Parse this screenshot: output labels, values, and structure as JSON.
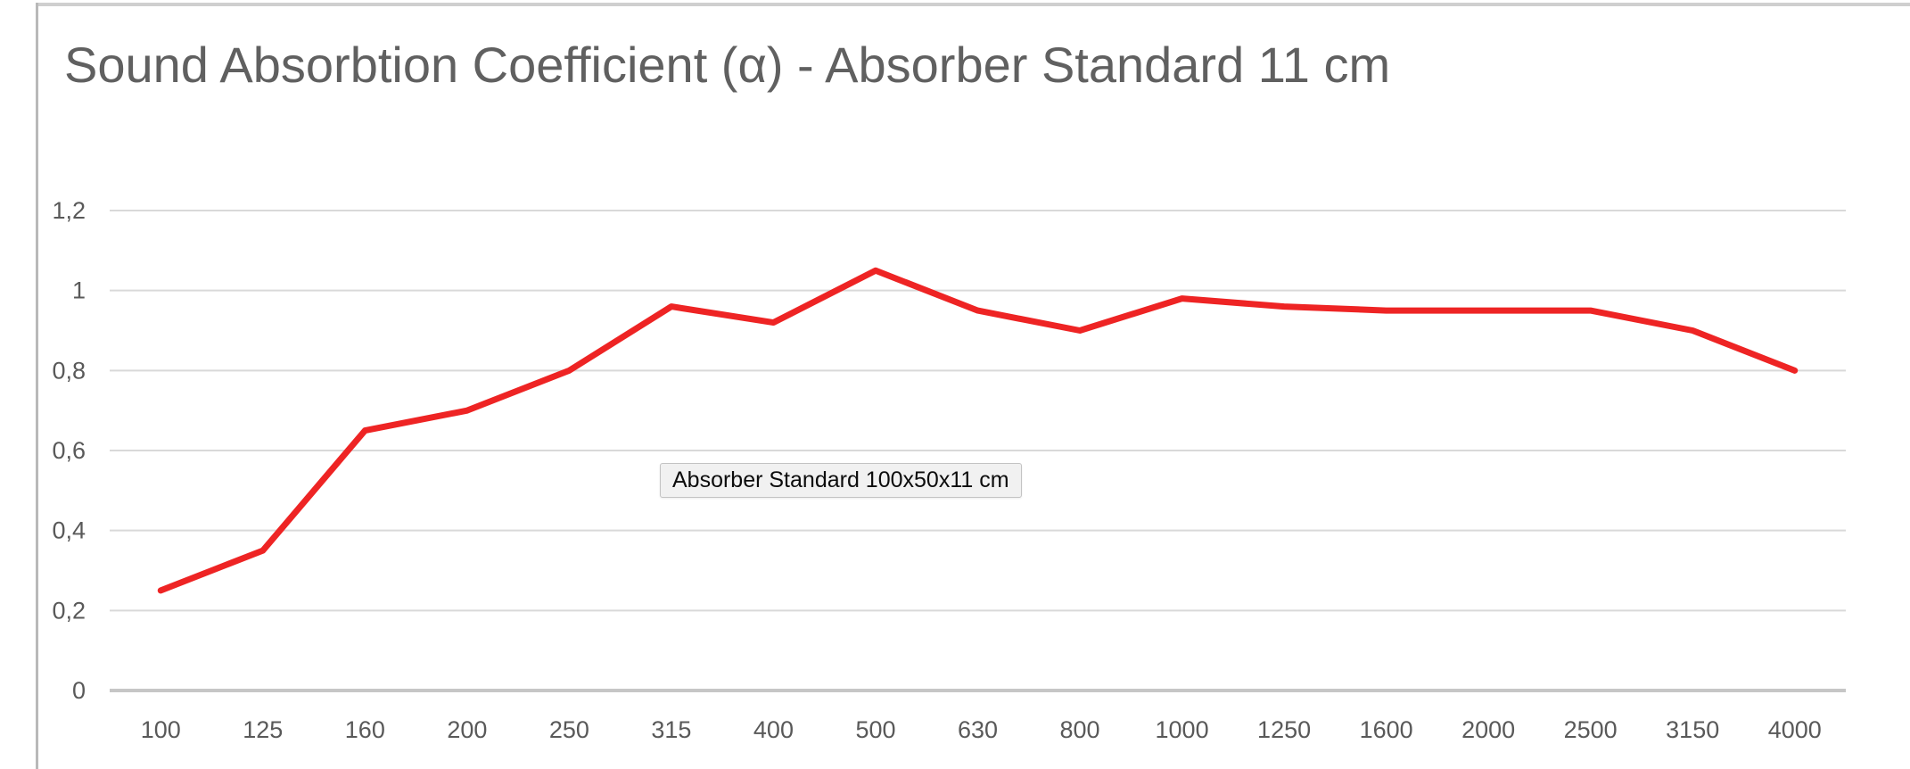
{
  "chart_data": {
    "type": "line",
    "title": "Sound Absorbtion Coefficient (α) - Absorber Standard 11 cm",
    "xlabel": "",
    "ylabel": "",
    "categories": [
      "100",
      "125",
      "160",
      "200",
      "250",
      "315",
      "400",
      "500",
      "630",
      "800",
      "1000",
      "1250",
      "1600",
      "2000",
      "2500",
      "3150",
      "4000"
    ],
    "series": [
      {
        "name": "Absorber Standard 100x50x11 cm",
        "color": "#ee2424",
        "values": [
          0.25,
          0.35,
          0.65,
          0.7,
          0.8,
          0.96,
          0.92,
          1.05,
          0.95,
          0.9,
          0.98,
          0.96,
          0.95,
          0.95,
          0.95,
          0.9,
          0.8
        ]
      }
    ],
    "ylim": [
      0,
      1.2
    ],
    "yticks": {
      "values": [
        0,
        0.2,
        0.4,
        0.6,
        0.8,
        1,
        1.2
      ],
      "labels": [
        "0",
        "0,2",
        "0,4",
        "0,6",
        "0,8",
        "1",
        "1,2"
      ]
    },
    "decimal_separator": ",",
    "grid": true,
    "legend": "none"
  },
  "tooltip": {
    "text": "Absorber Standard 100x50x11 cm"
  },
  "colors": {
    "series_red": "#ee2424",
    "gridline": "#d9d9d9",
    "axis_line": "#c6c6c6",
    "tick_text": "#595959",
    "title_text": "#606060"
  }
}
